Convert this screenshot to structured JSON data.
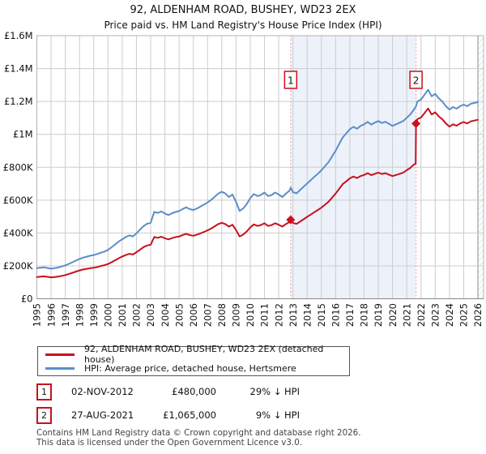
{
  "title": "92, ALDENHAM ROAD, BUSHEY, WD23 2EX",
  "subtitle": "Price paid vs. HM Land Registry's House Price Index (HPI)",
  "colors": {
    "property_line": "#c8101e",
    "hpi_line": "#5b8dc9",
    "sale_dashed": "#f19898",
    "shade": "#edf2fa",
    "grid": "#cccccc",
    "border": "#b3b3b3",
    "annotation_box_border": "#c8101e"
  },
  "chart_data": {
    "type": "line",
    "unit": "GBP thousands",
    "xlim": [
      1995,
      2026
    ],
    "ylim": [
      0,
      1600
    ],
    "grid": true,
    "legend_position": "bottom",
    "x_ticks": [
      1995,
      1996,
      1997,
      1998,
      1999,
      2000,
      2001,
      2002,
      2003,
      2004,
      2005,
      2006,
      2007,
      2008,
      2009,
      2010,
      2011,
      2012,
      2013,
      2014,
      2015,
      2016,
      2017,
      2018,
      2019,
      2020,
      2021,
      2022,
      2023,
      2024,
      2025,
      2026
    ],
    "y_ticks": [
      {
        "label": "£0",
        "v": 0
      },
      {
        "label": "£200K",
        "v": 200
      },
      {
        "label": "£400K",
        "v": 400
      },
      {
        "label": "£600K",
        "v": 600
      },
      {
        "label": "£800K",
        "v": 800
      },
      {
        "label": "£1M",
        "v": 1000
      },
      {
        "label": "£1.2M",
        "v": 1200
      },
      {
        "label": "£1.4M",
        "v": 1400
      },
      {
        "label": "£1.6M",
        "v": 1600
      }
    ],
    "shaded_region": [
      2012.84,
      2021.65
    ],
    "sales": [
      {
        "label": "1",
        "x": 2012.84,
        "price_k": 480
      },
      {
        "label": "2",
        "x": 2021.65,
        "price_k": 1065
      }
    ],
    "series": [
      {
        "name": "92, ALDENHAM ROAD, BUSHEY, WD23 2EX (detached house)",
        "color": "#c8101e",
        "x": [
          1995,
          1995.25,
          1995.5,
          1995.75,
          1996,
          1996.25,
          1996.5,
          1996.75,
          1997,
          1997.25,
          1997.5,
          1997.75,
          1998,
          1998.25,
          1998.5,
          1998.75,
          1999,
          1999.25,
          1999.5,
          1999.75,
          2000,
          2000.25,
          2000.5,
          2000.75,
          2001,
          2001.25,
          2001.5,
          2001.75,
          2002,
          2002.25,
          2002.5,
          2002.75,
          2003,
          2003.25,
          2003.5,
          2003.75,
          2004,
          2004.25,
          2004.5,
          2004.75,
          2005,
          2005.25,
          2005.5,
          2005.75,
          2006,
          2006.25,
          2006.5,
          2006.75,
          2007,
          2007.25,
          2007.5,
          2007.75,
          2008,
          2008.25,
          2008.5,
          2008.75,
          2009,
          2009.25,
          2009.5,
          2009.75,
          2010,
          2010.25,
          2010.5,
          2010.75,
          2011,
          2011.25,
          2011.5,
          2011.75,
          2012,
          2012.25,
          2012.5,
          2012.75,
          2012.84,
          2013,
          2013.25,
          2013.5,
          2013.75,
          2014,
          2014.25,
          2014.5,
          2014.75,
          2015,
          2015.25,
          2015.5,
          2015.75,
          2016,
          2016.25,
          2016.5,
          2016.75,
          2017,
          2017.25,
          2017.5,
          2017.75,
          2018,
          2018.25,
          2018.5,
          2018.75,
          2019,
          2019.25,
          2019.5,
          2019.75,
          2020,
          2020.25,
          2020.5,
          2020.75,
          2021,
          2021.25,
          2021.5,
          2021.63,
          2021.65,
          2021.75,
          2022,
          2022.25,
          2022.5,
          2022.75,
          2023,
          2023.25,
          2023.5,
          2023.75,
          2024,
          2024.25,
          2024.5,
          2024.75,
          2025,
          2025.25,
          2025.5,
          2025.75,
          2026
        ],
        "values": [
          132,
          134,
          136,
          133,
          130,
          132,
          135,
          139,
          144,
          151,
          158,
          165,
          172,
          178,
          182,
          186,
          189,
          193,
          199,
          204,
          211,
          222,
          234,
          246,
          257,
          266,
          273,
          269,
          283,
          298,
          314,
          324,
          328,
          375,
          371,
          377,
          368,
          361,
          369,
          375,
          378,
          388,
          395,
          387,
          383,
          390,
          398,
          407,
          416,
          427,
          441,
          454,
          462,
          454,
          439,
          450,
          418,
          379,
          390,
          409,
          434,
          452,
          443,
          448,
          459,
          443,
          448,
          459,
          450,
          439,
          454,
          466,
          480,
          461,
          455,
          469,
          483,
          498,
          512,
          526,
          540,
          554,
          572,
          590,
          615,
          640,
          668,
          697,
          714,
          732,
          743,
          734,
          746,
          753,
          764,
          752,
          760,
          767,
          759,
          764,
          755,
          746,
          753,
          760,
          767,
          782,
          796,
          817,
          820,
          1065,
          1093,
          1102,
          1129,
          1157,
          1120,
          1134,
          1109,
          1091,
          1066,
          1047,
          1061,
          1052,
          1066,
          1075,
          1066,
          1079,
          1084,
          1088
        ]
      },
      {
        "name": "HPI: Average price, detached house, Hertsmere",
        "color": "#5b8dc9",
        "x": [
          1995,
          1995.25,
          1995.5,
          1995.75,
          1996,
          1996.25,
          1996.5,
          1996.75,
          1997,
          1997.25,
          1997.5,
          1997.75,
          1998,
          1998.25,
          1998.5,
          1998.75,
          1999,
          1999.25,
          1999.5,
          1999.75,
          2000,
          2000.25,
          2000.5,
          2000.75,
          2001,
          2001.25,
          2001.5,
          2001.75,
          2002,
          2002.25,
          2002.5,
          2002.75,
          2003,
          2003.25,
          2003.5,
          2003.75,
          2004,
          2004.25,
          2004.5,
          2004.75,
          2005,
          2005.25,
          2005.5,
          2005.75,
          2006,
          2006.25,
          2006.5,
          2006.75,
          2007,
          2007.25,
          2007.5,
          2007.75,
          2008,
          2008.25,
          2008.5,
          2008.75,
          2009,
          2009.25,
          2009.5,
          2009.75,
          2010,
          2010.25,
          2010.5,
          2010.75,
          2011,
          2011.25,
          2011.5,
          2011.75,
          2012,
          2012.25,
          2012.5,
          2012.75,
          2012.84,
          2013,
          2013.25,
          2013.5,
          2013.75,
          2014,
          2014.25,
          2014.5,
          2014.75,
          2015,
          2015.25,
          2015.5,
          2015.75,
          2016,
          2016.25,
          2016.5,
          2016.75,
          2017,
          2017.25,
          2017.5,
          2017.75,
          2018,
          2018.25,
          2018.5,
          2018.75,
          2019,
          2019.25,
          2019.5,
          2019.75,
          2020,
          2020.25,
          2020.5,
          2020.75,
          2021,
          2021.25,
          2021.5,
          2021.65,
          2021.75,
          2022,
          2022.25,
          2022.5,
          2022.75,
          2023,
          2023.25,
          2023.5,
          2023.75,
          2024,
          2024.25,
          2024.5,
          2024.75,
          2025,
          2025.25,
          2025.5,
          2025.75,
          2026
        ],
        "values": [
          186,
          189,
          191,
          187,
          183,
          186,
          190,
          196,
          203,
          212,
          222,
          232,
          242,
          250,
          256,
          262,
          266,
          272,
          280,
          287,
          297,
          313,
          330,
          347,
          362,
          375,
          385,
          379,
          398,
          420,
          442,
          456,
          462,
          528,
          522,
          531,
          518,
          509,
          520,
          528,
          533,
          546,
          556,
          545,
          540,
          549,
          561,
          573,
          586,
          601,
          621,
          639,
          651,
          640,
          619,
          634,
          589,
          534,
          549,
          576,
          612,
          637,
          624,
          631,
          646,
          624,
          631,
          646,
          634,
          619,
          639,
          657,
          676,
          649,
          641,
          661,
          681,
          701,
          721,
          741,
          761,
          781,
          806,
          831,
          866,
          901,
          941,
          981,
          1006,
          1031,
          1046,
          1034,
          1051,
          1061,
          1076,
          1059,
          1071,
          1081,
          1069,
          1076,
          1064,
          1051,
          1061,
          1071,
          1081,
          1101,
          1121,
          1151,
          1170,
          1201,
          1211,
          1241,
          1271,
          1231,
          1246,
          1219,
          1199,
          1171,
          1151,
          1166,
          1156,
          1171,
          1181,
          1171,
          1186,
          1191,
          1196
        ]
      }
    ]
  },
  "legend": {
    "items": [
      {
        "label": "92, ALDENHAM ROAD, BUSHEY, WD23 2EX (detached house)",
        "color": "#c8101e"
      },
      {
        "label": "HPI: Average price, detached house, Hertsmere",
        "color": "#5b8dc9"
      }
    ]
  },
  "annotations": [
    {
      "marker": "1",
      "date": "02-NOV-2012",
      "price": "£480,000",
      "hpi_diff": "29% ↓ HPI"
    },
    {
      "marker": "2",
      "date": "27-AUG-2021",
      "price": "£1,065,000",
      "hpi_diff": "9% ↓ HPI"
    }
  ],
  "footer": {
    "line1": "Contains HM Land Registry data © Crown copyright and database right 2026.",
    "line2": "This data is licensed under the Open Government Licence v3.0."
  }
}
